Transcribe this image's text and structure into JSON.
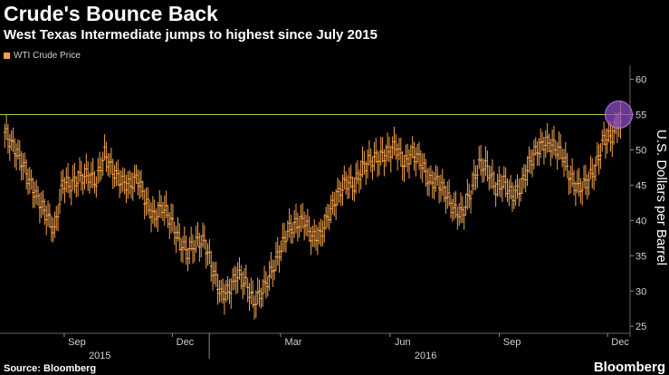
{
  "chart_data": {
    "type": "line",
    "title": "Crude's Bounce Back",
    "subtitle": "West Texas Intermediate jumps to highest since July 2015",
    "ylabel": "U.S. Dollars per Barrel",
    "legend": [
      "WTI Crude Price"
    ],
    "legend_position": "top-left",
    "ylim": [
      24,
      62
    ],
    "yticks": [
      25,
      30,
      35,
      40,
      45,
      50,
      55,
      60
    ],
    "x_month_ticks": [
      "Sep",
      "Dec",
      "Mar",
      "Jun",
      "Sep",
      "Dec"
    ],
    "x_year_labels": [
      "2015",
      "2016"
    ],
    "reference_line": 55,
    "series": [
      {
        "name": "WTI Crude Price",
        "x": [
          "2015-07-13",
          "2015-07-20",
          "2015-07-27",
          "2015-08-03",
          "2015-08-10",
          "2015-08-17",
          "2015-08-24",
          "2015-08-31",
          "2015-09-07",
          "2015-09-14",
          "2015-09-21",
          "2015-09-28",
          "2015-10-05",
          "2015-10-12",
          "2015-10-19",
          "2015-10-26",
          "2015-11-02",
          "2015-11-09",
          "2015-11-16",
          "2015-11-23",
          "2015-11-30",
          "2015-12-07",
          "2015-12-14",
          "2015-12-21",
          "2015-12-28",
          "2016-01-04",
          "2016-01-11",
          "2016-01-18",
          "2016-01-25",
          "2016-02-01",
          "2016-02-08",
          "2016-02-15",
          "2016-02-22",
          "2016-02-29",
          "2016-03-07",
          "2016-03-14",
          "2016-03-21",
          "2016-03-28",
          "2016-04-04",
          "2016-04-11",
          "2016-04-18",
          "2016-04-25",
          "2016-05-02",
          "2016-05-09",
          "2016-05-16",
          "2016-05-23",
          "2016-05-30",
          "2016-06-06",
          "2016-06-13",
          "2016-06-20",
          "2016-06-27",
          "2016-07-04",
          "2016-07-11",
          "2016-07-18",
          "2016-07-25",
          "2016-08-01",
          "2016-08-08",
          "2016-08-15",
          "2016-08-22",
          "2016-08-29",
          "2016-09-05",
          "2016-09-12",
          "2016-09-19",
          "2016-09-26",
          "2016-10-03",
          "2016-10-10",
          "2016-10-17",
          "2016-10-24",
          "2016-10-31",
          "2016-11-07",
          "2016-11-14",
          "2016-11-21",
          "2016-11-28",
          "2016-12-05",
          "2016-12-12"
        ],
        "values": [
          52.5,
          50.5,
          48.5,
          45.5,
          43,
          41,
          38.5,
          45.5,
          45,
          46,
          46.5,
          45.5,
          49.5,
          47,
          45.5,
          45,
          46,
          42.5,
          40.5,
          42,
          40,
          37,
          35.5,
          37,
          37,
          33,
          29.5,
          30,
          32.5,
          31,
          28.5,
          30,
          32.5,
          35.5,
          38.5,
          39.5,
          40,
          37.5,
          38,
          41,
          43.5,
          45.5,
          45,
          47.5,
          48.5,
          49,
          49.5,
          50.5,
          48,
          49.5,
          48.5,
          45.5,
          45.5,
          44,
          41.5,
          41,
          44,
          48,
          47.5,
          44.5,
          45.5,
          43.5,
          44.5,
          48,
          50,
          51,
          50.5,
          49.5,
          46,
          44.5,
          45.5,
          47.5,
          51.5,
          52,
          54.5
        ]
      }
    ],
    "colors": {
      "line": "#f2a14a",
      "reference": "#9fd03a",
      "highlight": "#8a4bbf"
    }
  },
  "source": "Source: Bloomberg",
  "brand": "Bloomberg"
}
